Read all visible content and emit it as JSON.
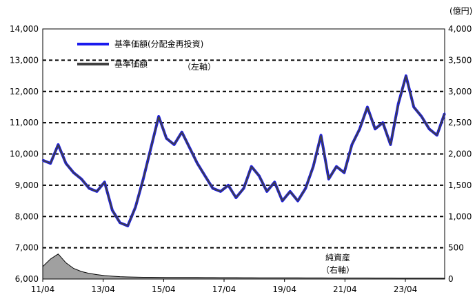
{
  "chart_data": {
    "type": "line",
    "title": "",
    "left_axis": {
      "ylim": [
        6000,
        14000
      ],
      "ticks": [
        "6,000",
        "7,000",
        "8,000",
        "9,000",
        "10,000",
        "11,000",
        "12,000",
        "13,000",
        "14,000"
      ]
    },
    "right_axis": {
      "unit": "(億円)",
      "ylim": [
        0,
        4000
      ],
      "ticks": [
        "0",
        "500",
        "1,000",
        "1,500",
        "2,000",
        "2,500",
        "3,000",
        "3,500",
        "4,000"
      ]
    },
    "x_ticks": [
      "11/04",
      "13/04",
      "15/04",
      "17/04",
      "19/04",
      "21/04",
      "23/04"
    ],
    "x": [
      "11/04",
      "11/07",
      "11/10",
      "12/01",
      "12/04",
      "12/07",
      "12/10",
      "13/01",
      "13/04",
      "13/07",
      "13/10",
      "14/01",
      "14/04",
      "14/07",
      "14/10",
      "15/01",
      "15/04",
      "15/07",
      "15/10",
      "16/01",
      "16/04",
      "16/07",
      "16/10",
      "17/01",
      "17/04",
      "17/07",
      "17/10",
      "18/01",
      "18/04",
      "18/07",
      "18/10",
      "19/01",
      "19/04",
      "19/07",
      "19/10",
      "20/01",
      "20/04",
      "20/07",
      "20/10",
      "21/01",
      "21/04",
      "21/07",
      "21/10",
      "22/01",
      "22/04",
      "22/07",
      "22/10",
      "23/01",
      "23/04",
      "23/07",
      "23/10",
      "24/01",
      "24/04"
    ],
    "series": [
      {
        "name": "基準価額(分配金再投資)",
        "axis": "left",
        "color": "#1a1aee",
        "values": [
          9800,
          9700,
          10300,
          9700,
          9400,
          9200,
          8900,
          8800,
          9100,
          8200,
          7800,
          7700,
          8300,
          9200,
          10200,
          11200,
          10500,
          10300,
          10700,
          10200,
          9700,
          9300,
          8900,
          8800,
          9000,
          8600,
          8900,
          9600,
          9300,
          8800,
          9100,
          8500,
          8800,
          8500,
          8900,
          9600,
          10600,
          9200,
          9600,
          9400,
          10300,
          10800,
          11500,
          10800,
          11000,
          10300,
          11600,
          12500,
          11500,
          11200,
          10800,
          10600,
          11300
        ]
      },
      {
        "name": "基準価額",
        "axis": "left",
        "color": "#404040",
        "values": [
          9800,
          9700,
          10300,
          9700,
          9400,
          9200,
          8900,
          8800,
          9100,
          8200,
          7800,
          7700,
          8300,
          9200,
          10200,
          11200,
          10500,
          10300,
          10700,
          10200,
          9700,
          9300,
          8900,
          8800,
          9000,
          8600,
          8900,
          9600,
          9300,
          8800,
          9100,
          8500,
          8800,
          8500,
          8900,
          9600,
          10600,
          9200,
          9600,
          9400,
          10300,
          10800,
          11500,
          10800,
          11000,
          10300,
          11600,
          12500,
          11500,
          11200,
          10800,
          10600,
          11300
        ]
      },
      {
        "name": "純資産",
        "axis": "right",
        "type": "area",
        "color": "#a0a0a0",
        "values": [
          200,
          320,
          400,
          260,
          170,
          120,
          90,
          70,
          55,
          45,
          38,
          33,
          30,
          28,
          27,
          26,
          25,
          25,
          24,
          24,
          24,
          23,
          23,
          22,
          22,
          22,
          21,
          21,
          20,
          20,
          20,
          19,
          19,
          19,
          18,
          18,
          18,
          17,
          17,
          17,
          16,
          16,
          16,
          15,
          15,
          15,
          14,
          14,
          14,
          13,
          13,
          13,
          12
        ]
      }
    ],
    "legend": [
      {
        "label": "基準価額(分配金再投資)",
        "color": "#1a1aee"
      },
      {
        "label": "基準価額",
        "color": "#404040"
      }
    ],
    "annotations": {
      "left_axis_note": "（左軸）",
      "net_assets_label": "純資産",
      "right_axis_note": "（右軸）"
    },
    "grid": "horizontal-dashed"
  }
}
